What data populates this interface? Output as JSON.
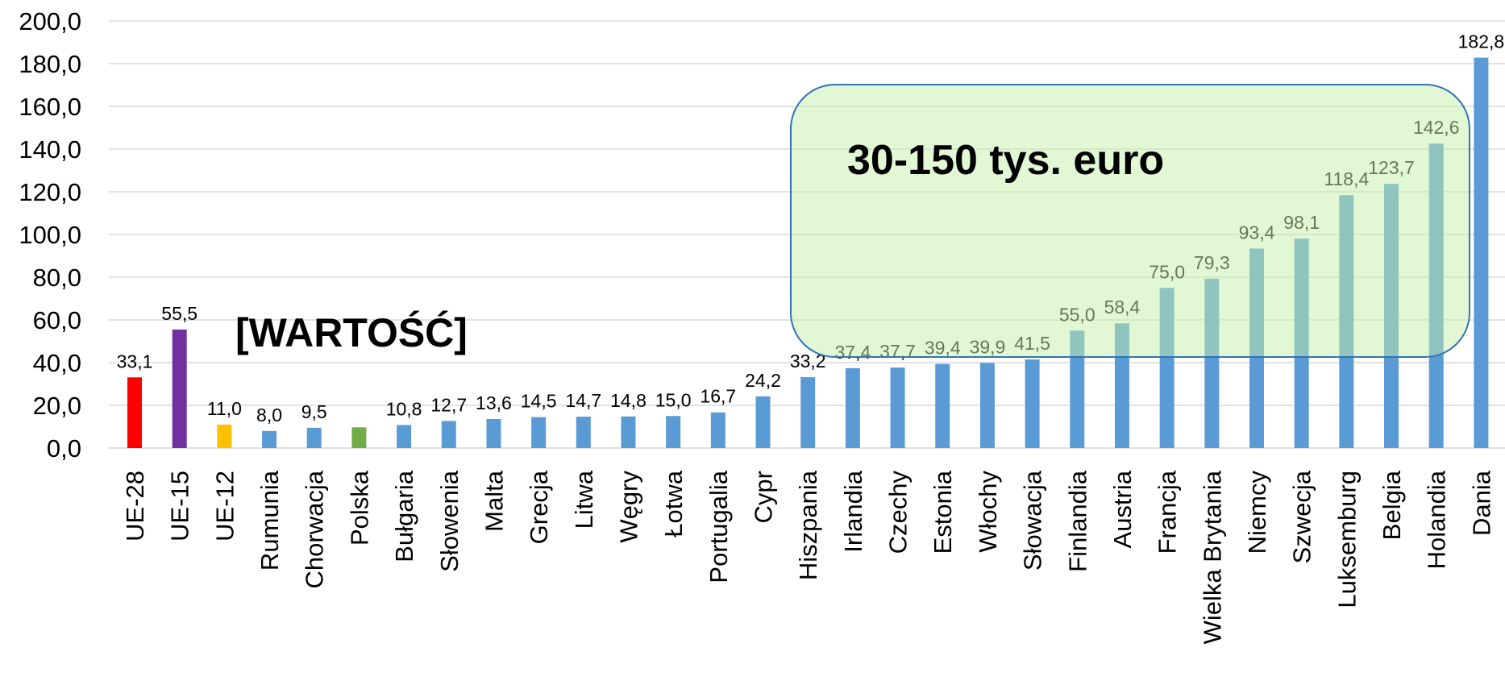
{
  "chart_data": {
    "type": "bar",
    "categories": [
      "UE-28",
      "UE-15",
      "UE-12",
      "Rumunia",
      "Chorwacja",
      "Polska",
      "Bułgaria",
      "Słowenia",
      "Malta",
      "Grecja",
      "Litwa",
      "Węgry",
      "Łotwa",
      "Portugalia",
      "Cypr",
      "Hiszpania",
      "Irlandia",
      "Czechy",
      "Estonia",
      "Włochy",
      "Słowacja",
      "Finlandia",
      "Austria",
      "Francja",
      "Wielka Brytania",
      "Niemcy",
      "Szwecja",
      "Luksemburg",
      "Belgia",
      "Holandia",
      "Dania"
    ],
    "values": [
      33.1,
      55.5,
      11.0,
      8.0,
      9.5,
      9.7,
      10.8,
      12.7,
      13.6,
      14.5,
      14.7,
      14.8,
      15.0,
      16.7,
      24.2,
      33.2,
      37.4,
      37.7,
      39.4,
      39.9,
      41.5,
      55.0,
      58.4,
      75.0,
      79.3,
      93.4,
      98.1,
      118.4,
      123.7,
      142.6,
      182.8
    ],
    "value_labels": [
      "33,1",
      "55,5",
      "11,0",
      "8,0",
      "9,5",
      null,
      "10,8",
      "12,7",
      "13,6",
      "14,5",
      "14,7",
      "14,8",
      "15,0",
      "16,7",
      "24,2",
      "33,2",
      "37,4",
      "37,7",
      "39,4",
      "39,9",
      "41,5",
      "55,0",
      "58,4",
      "75,0",
      "79,3",
      "93,4",
      "98,1",
      "118,4",
      "123,7",
      "142,6",
      "182,8"
    ],
    "colors": [
      "#ff0000",
      "#7030a0",
      "#ffc000",
      "#5b9bd5",
      "#5b9bd5",
      "#70ad47",
      "#5b9bd5",
      "#5b9bd5",
      "#5b9bd5",
      "#5b9bd5",
      "#5b9bd5",
      "#5b9bd5",
      "#5b9bd5",
      "#5b9bd5",
      "#5b9bd5",
      "#5b9bd5",
      "#5b9bd5",
      "#5b9bd5",
      "#5b9bd5",
      "#5b9bd5",
      "#5b9bd5",
      "#5b9bd5",
      "#5b9bd5",
      "#5b9bd5",
      "#5b9bd5",
      "#5b9bd5",
      "#5b9bd5",
      "#5b9bd5",
      "#5b9bd5",
      "#5b9bd5",
      "#5b9bd5"
    ],
    "ylim": [
      0,
      200
    ],
    "yticks": [
      {
        "value": 0,
        "label": "0,0"
      },
      {
        "value": 20,
        "label": "20,0"
      },
      {
        "value": 40,
        "label": "40,0"
      },
      {
        "value": 60,
        "label": "60,0"
      },
      {
        "value": 80,
        "label": "80,0"
      },
      {
        "value": 100,
        "label": "100,0"
      },
      {
        "value": 120,
        "label": "120,0"
      },
      {
        "value": 140,
        "label": "140,0"
      },
      {
        "value": 160,
        "label": "160,0"
      },
      {
        "value": 180,
        "label": "180,0"
      },
      {
        "value": 200,
        "label": "200,0"
      }
    ],
    "grid": true,
    "annotations": [
      "[WARTOŚĆ]",
      "30-150 tys. euro"
    ]
  }
}
